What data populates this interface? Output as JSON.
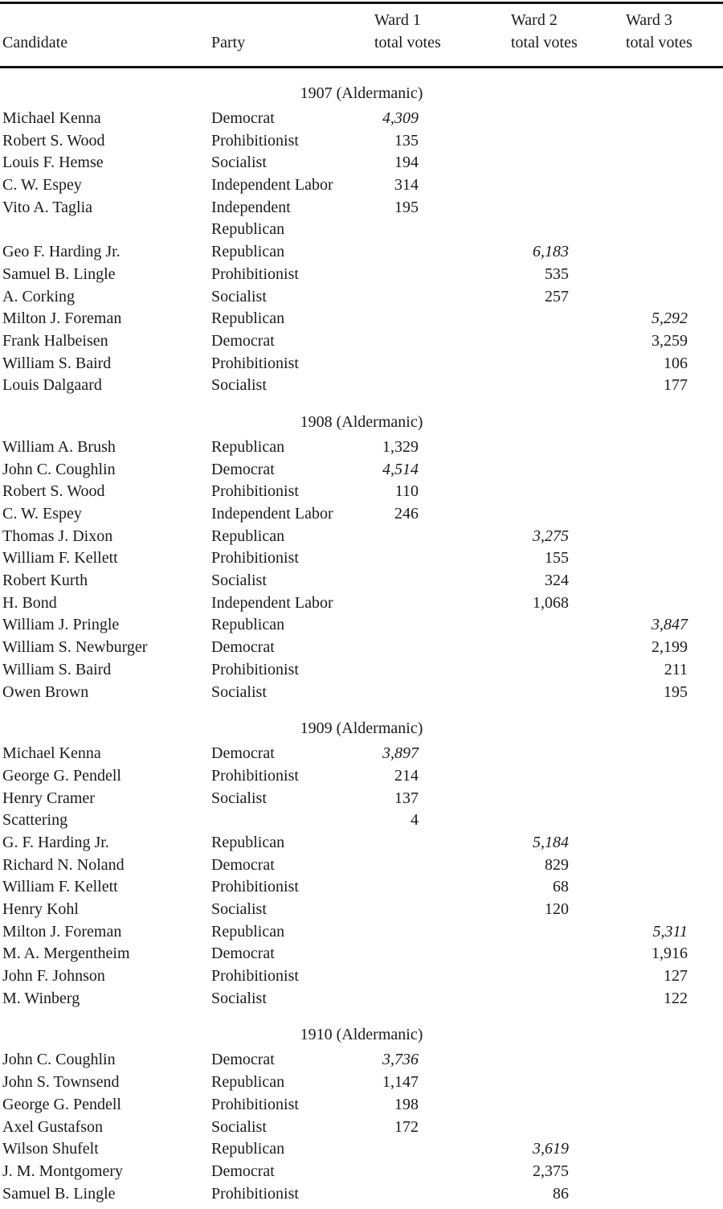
{
  "page": {
    "background": "#ffffff",
    "text_color": "#1b1b1b",
    "rule_color": "#111111"
  },
  "header": {
    "candidate_label": "Candidate",
    "party_label": "Party",
    "ward_headers": [
      {
        "line1": "Ward 1",
        "line2": "total votes"
      },
      {
        "line1": "Ward 2",
        "line2": "total votes"
      },
      {
        "line1": "Ward 3",
        "line2": "total votes"
      }
    ]
  },
  "sections": [
    {
      "title": "1907 (Aldermanic)",
      "rows": [
        {
          "candidate": "Michael Kenna",
          "party": "Democrat",
          "ward1": "4,309",
          "ward2": "",
          "ward3": "",
          "italic": true
        },
        {
          "candidate": "Robert S. Wood",
          "party": "Prohibitionist",
          "ward1": "135",
          "ward2": "",
          "ward3": "",
          "italic": false
        },
        {
          "candidate": "Louis F. Hemse",
          "party": "Socialist",
          "ward1": "194",
          "ward2": "",
          "ward3": "",
          "italic": false
        },
        {
          "candidate": "C. W. Espey",
          "party": "Independent Labor",
          "ward1": "314",
          "ward2": "",
          "ward3": "",
          "italic": false
        },
        {
          "candidate": "Vito A. Taglia",
          "party": "Independent",
          "ward1": "195",
          "ward2": "",
          "ward3": "",
          "italic": false
        },
        {
          "candidate": "",
          "party": "Republican",
          "ward1": "",
          "ward2": "",
          "ward3": "",
          "italic": false
        },
        {
          "candidate": "Geo F. Harding Jr.",
          "party": "Republican",
          "ward1": "",
          "ward2": "6,183",
          "ward3": "",
          "italic": true
        },
        {
          "candidate": "Samuel B. Lingle",
          "party": "Prohibitionist",
          "ward1": "",
          "ward2": "535",
          "ward3": "",
          "italic": false
        },
        {
          "candidate": "A. Corking",
          "party": "Socialist",
          "ward1": "",
          "ward2": "257",
          "ward3": "",
          "italic": false
        },
        {
          "candidate": "Milton J. Foreman",
          "party": "Republican",
          "ward1": "",
          "ward2": "",
          "ward3": "5,292",
          "italic": true
        },
        {
          "candidate": "Frank Halbeisen",
          "party": "Democrat",
          "ward1": "",
          "ward2": "",
          "ward3": "3,259",
          "italic": false
        },
        {
          "candidate": "William S. Baird",
          "party": "Prohibitionist",
          "ward1": "",
          "ward2": "",
          "ward3": "106",
          "italic": false
        },
        {
          "candidate": "Louis Dalgaard",
          "party": "Socialist",
          "ward1": "",
          "ward2": "",
          "ward3": "177",
          "italic": false
        }
      ]
    },
    {
      "title": "1908 (Aldermanic)",
      "rows": [
        {
          "candidate": "William A. Brush",
          "party": "Republican",
          "ward1": "1,329",
          "ward2": "",
          "ward3": "",
          "italic": false
        },
        {
          "candidate": "John C. Coughlin",
          "party": "Democrat",
          "ward1": "4,514",
          "ward2": "",
          "ward3": "",
          "italic": true
        },
        {
          "candidate": "Robert S. Wood",
          "party": "Prohibitionist",
          "ward1": "110",
          "ward2": "",
          "ward3": "",
          "italic": false
        },
        {
          "candidate": "C. W. Espey",
          "party": "Independent Labor",
          "ward1": "246",
          "ward2": "",
          "ward3": "",
          "italic": false
        },
        {
          "candidate": "Thomas J. Dixon",
          "party": "Republican",
          "ward1": "",
          "ward2": "3,275",
          "ward3": "",
          "italic": true
        },
        {
          "candidate": "William F. Kellett",
          "party": "Prohibitionist",
          "ward1": "",
          "ward2": "155",
          "ward3": "",
          "italic": false
        },
        {
          "candidate": "Robert Kurth",
          "party": "Socialist",
          "ward1": "",
          "ward2": "324",
          "ward3": "",
          "italic": false
        },
        {
          "candidate": "H. Bond",
          "party": "Independent Labor",
          "ward1": "",
          "ward2": "1,068",
          "ward3": "",
          "italic": false
        },
        {
          "candidate": "William J. Pringle",
          "party": "Republican",
          "ward1": "",
          "ward2": "",
          "ward3": "3,847",
          "italic": true
        },
        {
          "candidate": "William S. Newburger",
          "party": "Democrat",
          "ward1": "",
          "ward2": "",
          "ward3": "2,199",
          "italic": false
        },
        {
          "candidate": "William S. Baird",
          "party": "Prohibitionist",
          "ward1": "",
          "ward2": "",
          "ward3": "211",
          "italic": false
        },
        {
          "candidate": "Owen Brown",
          "party": "Socialist",
          "ward1": "",
          "ward2": "",
          "ward3": "195",
          "italic": false
        }
      ]
    },
    {
      "title": "1909 (Aldermanic)",
      "rows": [
        {
          "candidate": "Michael Kenna",
          "party": "Democrat",
          "ward1": "3,897",
          "ward2": "",
          "ward3": "",
          "italic": true
        },
        {
          "candidate": "George G. Pendell",
          "party": "Prohibitionist",
          "ward1": "214",
          "ward2": "",
          "ward3": "",
          "italic": false
        },
        {
          "candidate": "Henry Cramer",
          "party": "Socialist",
          "ward1": "137",
          "ward2": "",
          "ward3": "",
          "italic": false
        },
        {
          "candidate": "Scattering",
          "party": "",
          "ward1": "4",
          "ward2": "",
          "ward3": "",
          "italic": false
        },
        {
          "candidate": "G. F. Harding Jr.",
          "party": "Republican",
          "ward1": "",
          "ward2": "5,184",
          "ward3": "",
          "italic": true
        },
        {
          "candidate": "Richard N. Noland",
          "party": "Democrat",
          "ward1": "",
          "ward2": "829",
          "ward3": "",
          "italic": false
        },
        {
          "candidate": "William F. Kellett",
          "party": "Prohibitionist",
          "ward1": "",
          "ward2": "68",
          "ward3": "",
          "italic": false
        },
        {
          "candidate": "Henry Kohl",
          "party": "Socialist",
          "ward1": "",
          "ward2": "120",
          "ward3": "",
          "italic": false
        },
        {
          "candidate": "Milton J. Foreman",
          "party": "Republican",
          "ward1": "",
          "ward2": "",
          "ward3": "5,311",
          "italic": true
        },
        {
          "candidate": "M. A. Mergentheim",
          "party": "Democrat",
          "ward1": "",
          "ward2": "",
          "ward3": "1,916",
          "italic": false
        },
        {
          "candidate": "John F. Johnson",
          "party": "Prohibitionist",
          "ward1": "",
          "ward2": "",
          "ward3": "127",
          "italic": false
        },
        {
          "candidate": "M. Winberg",
          "party": "Socialist",
          "ward1": "",
          "ward2": "",
          "ward3": "122",
          "italic": false
        }
      ]
    },
    {
      "title": "1910 (Aldermanic)",
      "rows": [
        {
          "candidate": "John C. Coughlin",
          "party": "Democrat",
          "ward1": "3,736",
          "ward2": "",
          "ward3": "",
          "italic": true
        },
        {
          "candidate": "John S. Townsend",
          "party": "Republican",
          "ward1": "1,147",
          "ward2": "",
          "ward3": "",
          "italic": false
        },
        {
          "candidate": "George G. Pendell",
          "party": "Prohibitionist",
          "ward1": "198",
          "ward2": "",
          "ward3": "",
          "italic": false
        },
        {
          "candidate": "Axel Gustafson",
          "party": "Socialist",
          "ward1": "172",
          "ward2": "",
          "ward3": "",
          "italic": false
        },
        {
          "candidate": "Wilson Shufelt",
          "party": "Republican",
          "ward1": "",
          "ward2": "3,619",
          "ward3": "",
          "italic": true
        },
        {
          "candidate": "J. M. Montgomery",
          "party": "Democrat",
          "ward1": "",
          "ward2": "2,375",
          "ward3": "",
          "italic": false
        },
        {
          "candidate": "Samuel B. Lingle",
          "party": "Prohibitionist",
          "ward1": "",
          "ward2": "86",
          "ward3": "",
          "italic": false
        }
      ]
    }
  ]
}
